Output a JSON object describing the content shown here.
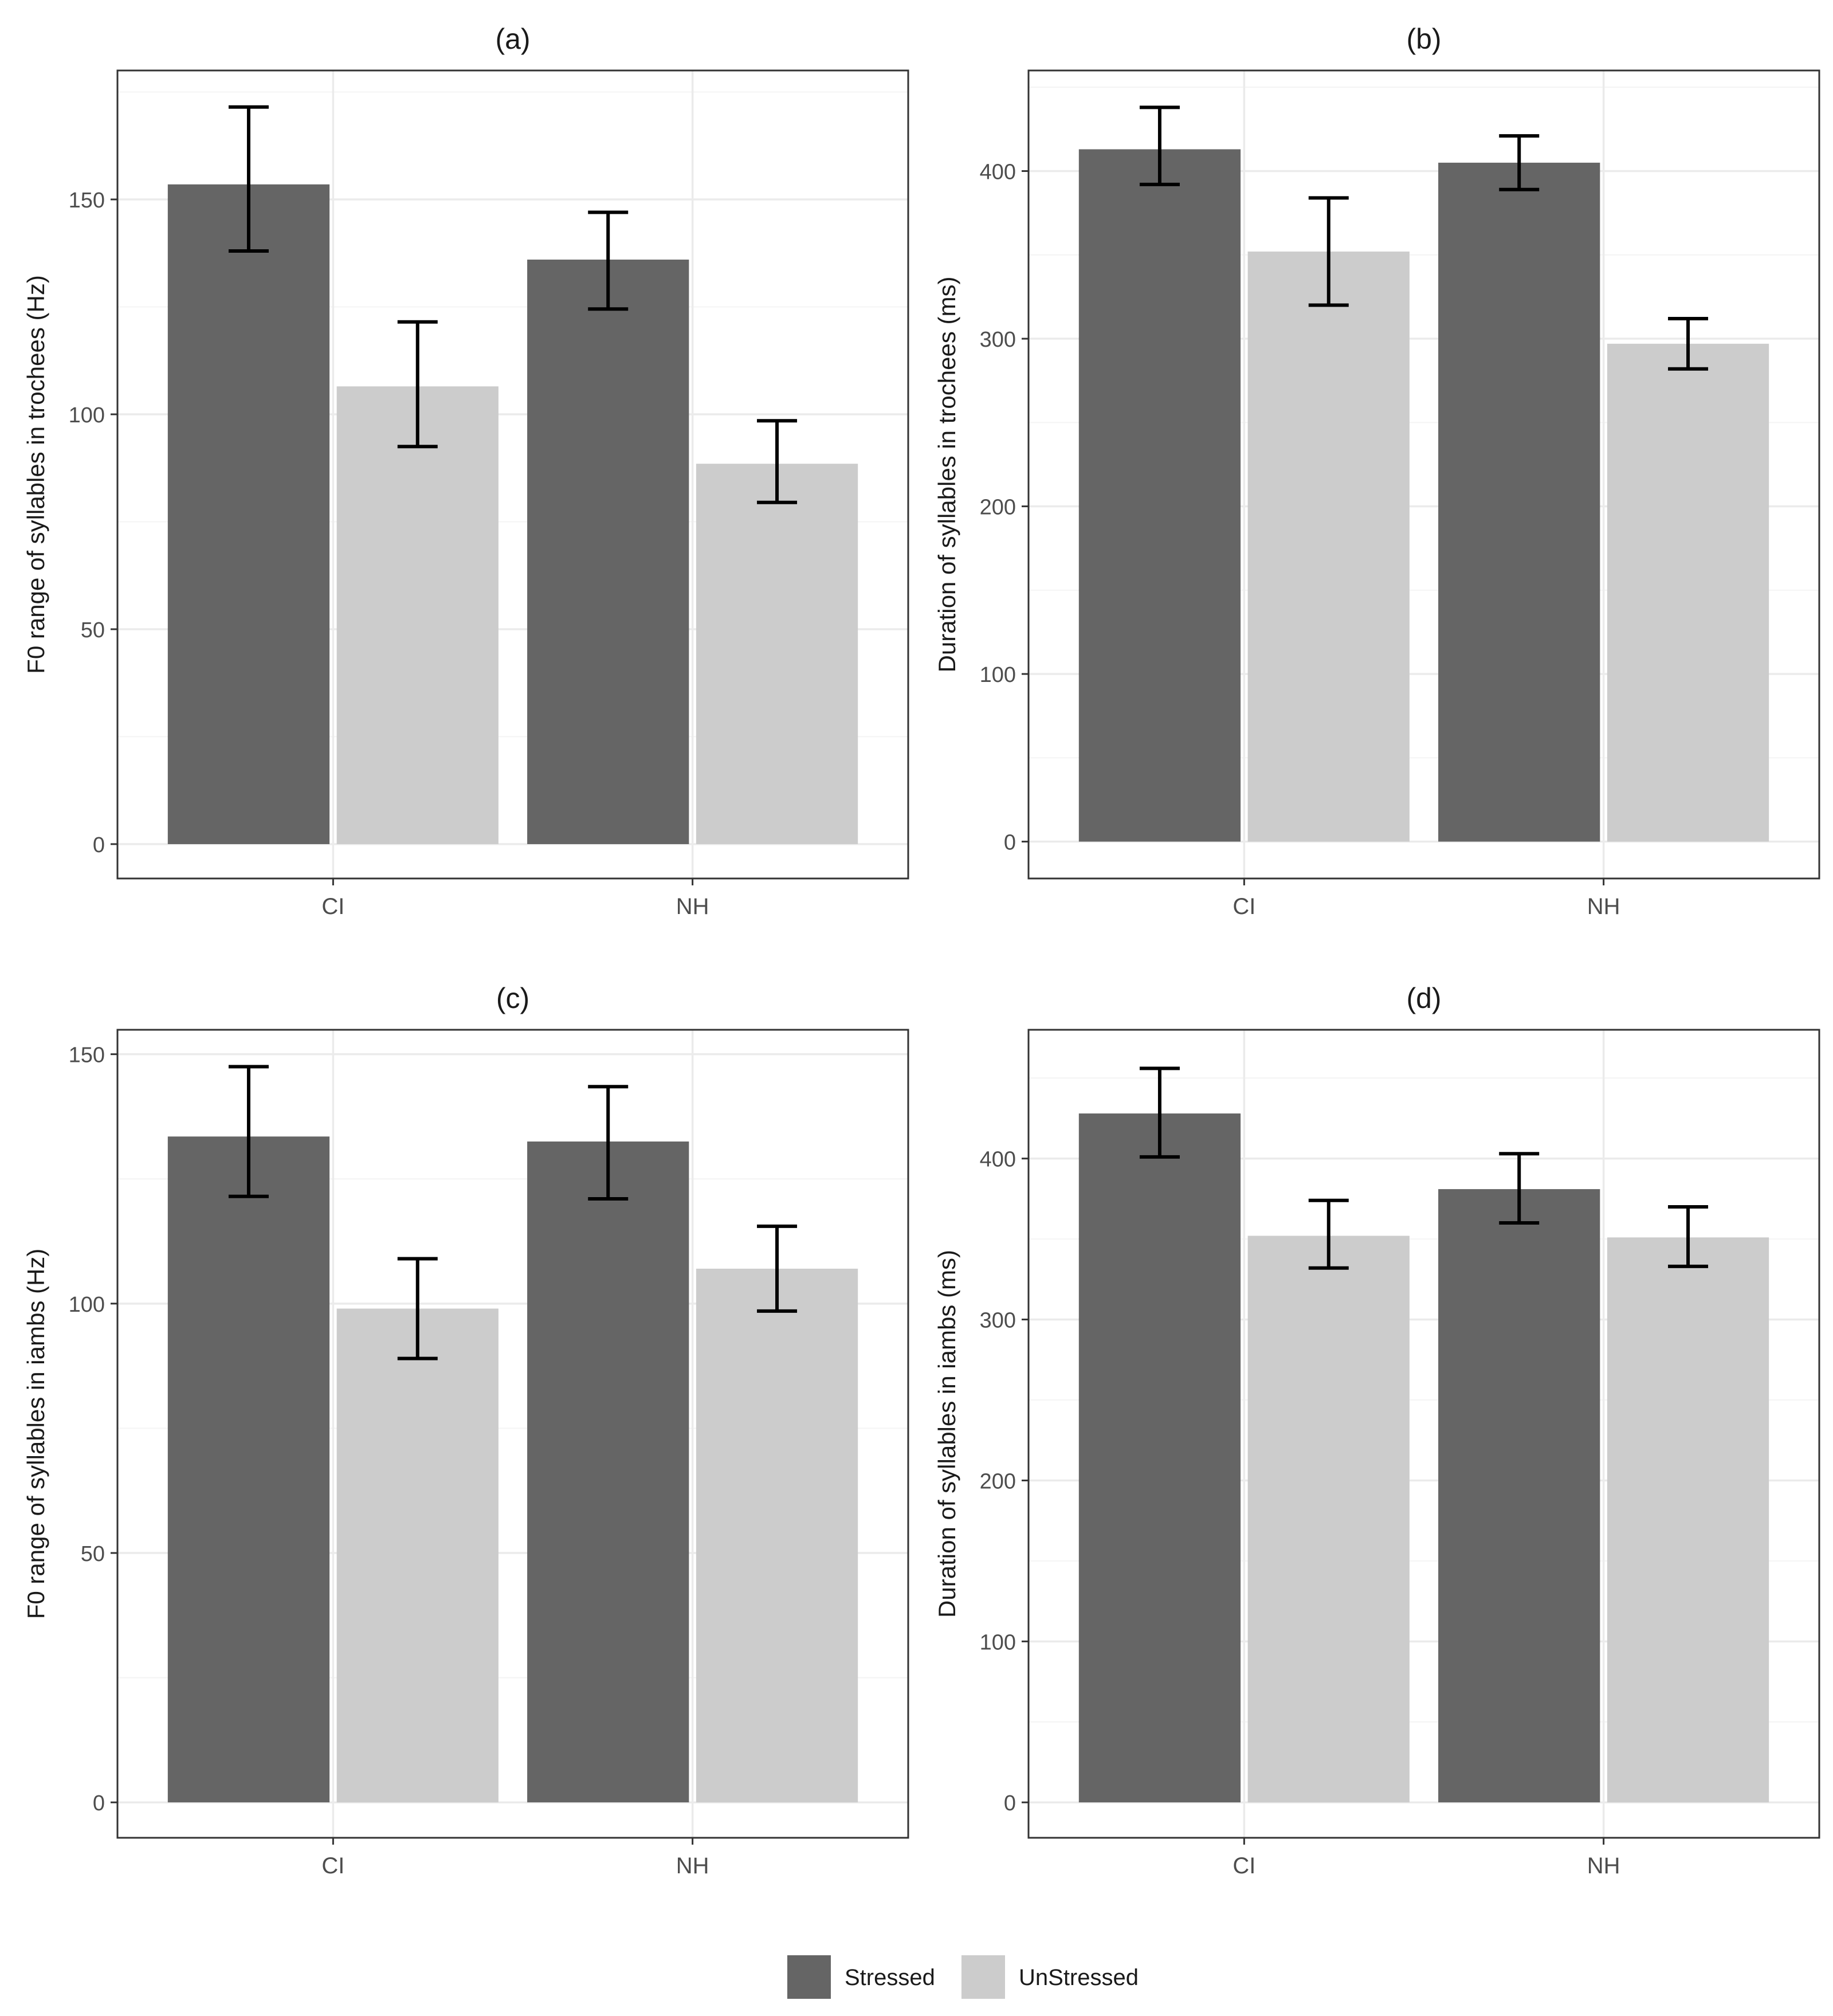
{
  "chart_data": [
    {
      "panel": "(a)",
      "type": "bar",
      "title": "(a)",
      "xlabel": "",
      "ylabel": "F0 range of syllables in trochees (Hz)",
      "categories": [
        "CI",
        "NH"
      ],
      "yticks": [
        0,
        50,
        100,
        150
      ],
      "ylim": [
        -8,
        180
      ],
      "grid": true,
      "series": [
        {
          "name": "Stressed",
          "values": [
            153.5,
            136
          ],
          "error_low": [
            138,
            124.5
          ],
          "error_high": [
            171.5,
            147
          ]
        },
        {
          "name": "UnStressed",
          "values": [
            106.5,
            88.5
          ],
          "error_low": [
            92.5,
            79.5
          ],
          "error_high": [
            121.5,
            98.5
          ]
        }
      ]
    },
    {
      "panel": "(b)",
      "type": "bar",
      "title": "(b)",
      "xlabel": "",
      "ylabel": "Duration of syllables in trochees (ms)",
      "categories": [
        "CI",
        "NH"
      ],
      "yticks": [
        0,
        100,
        200,
        300,
        400
      ],
      "ylim": [
        -22,
        460
      ],
      "grid": true,
      "series": [
        {
          "name": "Stressed",
          "values": [
            413,
            405
          ],
          "error_low": [
            392,
            389
          ],
          "error_high": [
            438,
            421
          ]
        },
        {
          "name": "UnStressed",
          "values": [
            352,
            297
          ],
          "error_low": [
            320,
            282
          ],
          "error_high": [
            384,
            312
          ]
        }
      ]
    },
    {
      "panel": "(c)",
      "type": "bar",
      "title": "(c)",
      "xlabel": "",
      "ylabel": "F0 range of syllables in iambs (Hz)",
      "categories": [
        "CI",
        "NH"
      ],
      "yticks": [
        0,
        50,
        100,
        150
      ],
      "ylim": [
        -7.1,
        154.9
      ],
      "grid": true,
      "series": [
        {
          "name": "Stressed",
          "values": [
            133.5,
            132.5
          ],
          "error_low": [
            121.5,
            121
          ],
          "error_high": [
            147.5,
            143.5
          ]
        },
        {
          "name": "UnStressed",
          "values": [
            99,
            107
          ],
          "error_low": [
            89,
            98.5
          ],
          "error_high": [
            109,
            115.5
          ]
        }
      ]
    },
    {
      "panel": "(d)",
      "type": "bar",
      "title": "(d)",
      "xlabel": "",
      "ylabel": "Duration of syllables in iambs (ms)",
      "categories": [
        "CI",
        "NH"
      ],
      "yticks": [
        0,
        100,
        200,
        300,
        400
      ],
      "ylim": [
        -22,
        480
      ],
      "grid": true,
      "series": [
        {
          "name": "Stressed",
          "values": [
            428,
            381
          ],
          "error_low": [
            401,
            360
          ],
          "error_high": [
            456,
            403
          ]
        },
        {
          "name": "UnStressed",
          "values": [
            352,
            351
          ],
          "error_low": [
            332,
            333
          ],
          "error_high": [
            374,
            370
          ]
        }
      ]
    }
  ],
  "legend": {
    "position": "bottom",
    "items": [
      {
        "label": "Stressed",
        "color": "#656565"
      },
      {
        "label": "UnStressed",
        "color": "#cccccc"
      }
    ]
  },
  "colors": {
    "stressed": "#656565",
    "unstressed": "#cccccc",
    "grid_major": "#ebebeb",
    "grid_minor": "#f4f4f4",
    "panel_border": "#333333",
    "error_bar": "#000000",
    "text": "#1a1a1a",
    "tick_text": "#4d4d4d"
  }
}
